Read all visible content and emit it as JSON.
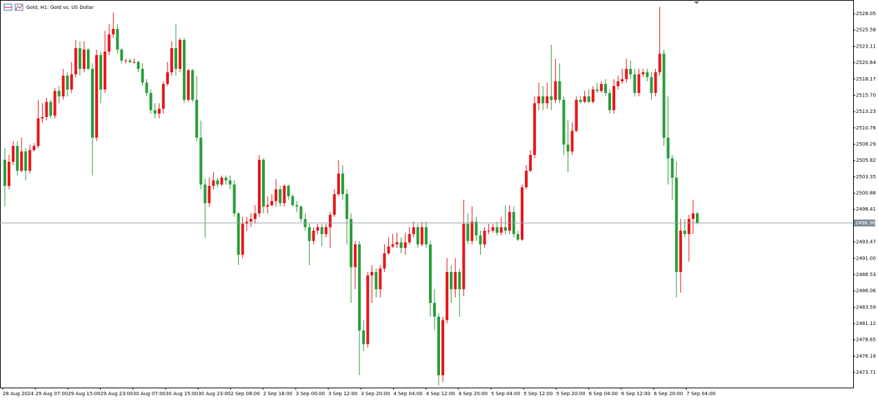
{
  "chart_data": {
    "type": "candlestick",
    "title": "Gold, H1:  Gold vs. US Dollar",
    "up_color": "#e8161a",
    "down_color": "#2a9d3a",
    "ylim": [
      2471.42,
      2530.14
    ],
    "yticks": [
      2528.05,
      2525.58,
      2523.11,
      2520.64,
      2518.17,
      {
        "value": 2515.7,
        "label": "2515.70"
      },
      2513.23,
      2510.76,
      2508.29,
      2505.82,
      2503.35,
      2500.88,
      2498.41,
      2493.47,
      {
        "value": 2491.0,
        "label": "2491.00"
      },
      2488.53,
      2486.06,
      2483.59,
      2481.12,
      2478.65,
      2476.18,
      2473.71
    ],
    "current_price": {
      "value": 2496.36,
      "label": "2496.36"
    },
    "x_labels": [
      "28 Aug 2024",
      "29 Aug 07:00",
      "29 Aug 15:00",
      "29 Aug 23:00",
      "30 Aug 07:00",
      "30 Aug 15:00",
      "30 Aug 23:00",
      "2 Sep 08:00",
      "2 Sep 16:00",
      "3 Sep 00:00",
      "3 Sep 12:00",
      "3 Sep 20:00",
      "4 Sep 04:00",
      "4 Sep 12:00",
      "4 Sep 20:00",
      "5 Sep 04:00",
      "5 Sep 12:00",
      "5 Sep 20:00",
      "6 Sep 04:00",
      "6 Sep 12:00",
      "6 Sep 20:00",
      "7 Sep 04:00"
    ],
    "ohlc": [
      [
        2505.94,
        2507.72,
        2498.85,
        2501.98
      ],
      [
        2501.98,
        2506.67,
        2501.46,
        2505.63
      ],
      [
        2505.63,
        2508.76,
        2505.11,
        2508.03
      ],
      [
        2508.03,
        2508.76,
        2503.54,
        2504.27
      ],
      [
        2504.27,
        2509.28,
        2504.06,
        2507.19
      ],
      [
        2507.19,
        2507.72,
        2502.81,
        2504.27
      ],
      [
        2504.27,
        2508.24,
        2503.86,
        2507.4
      ],
      [
        2507.4,
        2508.45,
        2507.19,
        2508.03
      ],
      [
        2508.03,
        2515.02,
        2507.72,
        2512.2
      ],
      [
        2512.2,
        2514.5,
        2511.57,
        2512.41
      ],
      [
        2512.41,
        2515.33,
        2511.89,
        2514.7
      ],
      [
        2514.7,
        2515.02,
        2512.2,
        2512.62
      ],
      [
        2512.62,
        2516.79,
        2512.2,
        2516.37
      ],
      [
        2516.37,
        2517.1,
        2514.5,
        2515.54
      ],
      [
        2515.54,
        2519.71,
        2515.02,
        2518.67
      ],
      [
        2518.67,
        2519.19,
        2515.54,
        2516.58
      ],
      [
        2516.58,
        2520.75,
        2516.06,
        2518.88
      ],
      [
        2518.88,
        2524.09,
        2518.46,
        2522.84
      ],
      [
        2522.84,
        2523.88,
        2518.67,
        2519.71
      ],
      [
        2519.71,
        2523.88,
        2519.19,
        2522.63
      ],
      [
        2522.63,
        2522.84,
        2519.5,
        2519.71
      ],
      [
        2519.71,
        2520.54,
        2503.54,
        2509.28
      ],
      [
        2509.28,
        2522.63,
        2508.76,
        2521.8
      ],
      [
        2521.8,
        2522.32,
        2514.5,
        2516.58
      ],
      [
        2516.58,
        2525.45,
        2516.06,
        2522.32
      ],
      [
        2522.32,
        2526.49,
        2521.8,
        2524.93
      ],
      [
        2524.93,
        2528.26,
        2524.4,
        2525.76
      ],
      [
        2525.76,
        2526.49,
        2522.0,
        2522.63
      ],
      [
        2522.63,
        2522.84,
        2520.54,
        2520.96
      ],
      [
        2520.96,
        2521.27,
        2520.54,
        2520.96
      ],
      [
        2520.96,
        2521.27,
        2520.54,
        2520.75
      ],
      [
        2520.75,
        2521.27,
        2520.54,
        2520.75
      ],
      [
        2520.75,
        2520.96,
        2519.19,
        2519.71
      ],
      [
        2519.71,
        2520.54,
        2517.1,
        2517.62
      ],
      [
        2517.62,
        2518.15,
        2515.54,
        2516.06
      ],
      [
        2516.06,
        2516.58,
        2512.93,
        2513.45
      ],
      [
        2513.45,
        2514.5,
        2512.2,
        2512.93
      ],
      [
        2512.93,
        2514.5,
        2512.2,
        2513.66
      ],
      [
        2513.66,
        2517.83,
        2512.93,
        2517.42
      ],
      [
        2517.42,
        2520.75,
        2517.1,
        2519.19
      ],
      [
        2519.19,
        2523.88,
        2518.67,
        2522.84
      ],
      [
        2522.84,
        2526.49,
        2518.67,
        2519.71
      ],
      [
        2519.71,
        2524.4,
        2519.19,
        2524.09
      ],
      [
        2524.09,
        2524.4,
        2514.5,
        2515.02
      ],
      [
        2515.02,
        2519.71,
        2514.7,
        2519.5
      ],
      [
        2519.5,
        2519.71,
        2514.7,
        2515.02
      ],
      [
        2515.02,
        2518.67,
        2508.76,
        2509.28
      ],
      [
        2509.28,
        2511.89,
        2501.46,
        2502.19
      ],
      [
        2502.19,
        2503.02,
        2494.16,
        2499.37
      ],
      [
        2499.37,
        2503.23,
        2498.85,
        2501.98
      ],
      [
        2501.98,
        2504.06,
        2501.46,
        2502.81
      ],
      [
        2502.81,
        2503.23,
        2501.77,
        2502.19
      ],
      [
        2502.19,
        2503.54,
        2501.98,
        2503.23
      ],
      [
        2503.23,
        2503.54,
        2502.19,
        2502.81
      ],
      [
        2502.81,
        2503.54,
        2501.46,
        2502.19
      ],
      [
        2502.19,
        2502.81,
        2497.29,
        2497.81
      ],
      [
        2497.81,
        2498.02,
        2489.98,
        2491.55
      ],
      [
        2491.55,
        2497.29,
        2491.03,
        2496.24
      ],
      [
        2496.24,
        2497.29,
        2495.2,
        2496.56
      ],
      [
        2496.56,
        2497.81,
        2495.72,
        2496.97
      ],
      [
        2496.97,
        2499.06,
        2496.24,
        2497.81
      ],
      [
        2497.81,
        2506.67,
        2497.29,
        2505.94
      ],
      [
        2505.94,
        2506.15,
        2497.81,
        2498.85
      ],
      [
        2498.85,
        2500.41,
        2497.81,
        2499.06
      ],
      [
        2499.06,
        2500.73,
        2498.85,
        2499.68
      ],
      [
        2499.68,
        2503.02,
        2498.85,
        2501.46
      ],
      [
        2501.46,
        2501.98,
        2498.85,
        2499.37
      ],
      [
        2499.37,
        2502.19,
        2498.85,
        2501.98
      ],
      [
        2501.98,
        2502.19,
        2499.89,
        2500.41
      ],
      [
        2500.41,
        2500.73,
        2498.85,
        2499.06
      ],
      [
        2499.06,
        2499.68,
        2498.02,
        2498.85
      ],
      [
        2498.85,
        2499.06,
        2496.56,
        2496.97
      ],
      [
        2496.97,
        2497.81,
        2495.2,
        2495.72
      ],
      [
        2495.72,
        2496.24,
        2489.98,
        2493.64
      ],
      [
        2493.64,
        2495.72,
        2493.11,
        2495.2
      ],
      [
        2495.2,
        2496.24,
        2494.68,
        2495.72
      ],
      [
        2495.72,
        2496.24,
        2492.8,
        2494.68
      ],
      [
        2494.68,
        2496.24,
        2494.16,
        2495.72
      ],
      [
        2495.72,
        2498.02,
        2492.59,
        2497.6
      ],
      [
        2497.6,
        2501.46,
        2497.29,
        2500.73
      ],
      [
        2500.73,
        2505.94,
        2500.41,
        2503.86
      ],
      [
        2503.86,
        2505.11,
        2499.89,
        2500.73
      ],
      [
        2500.73,
        2501.46,
        2493.11,
        2496.97
      ],
      [
        2496.97,
        2497.81,
        2484.25,
        2489.67
      ],
      [
        2489.67,
        2493.64,
        2486.33,
        2493.11
      ],
      [
        2493.11,
        2493.64,
        2473.3,
        2480.08
      ],
      [
        2480.08,
        2481.64,
        2476.95,
        2478.01
      ],
      [
        2478.01,
        2488.94,
        2477.47,
        2488.42
      ],
      [
        2488.42,
        2489.98,
        2484.25,
        2488.94
      ],
      [
        2488.94,
        2489.46,
        2485.08,
        2486.33
      ],
      [
        2486.33,
        2489.98,
        2485.08,
        2489.46
      ],
      [
        2489.46,
        2493.11,
        2488.94,
        2491.76
      ],
      [
        2491.76,
        2494.16,
        2491.55,
        2492.8
      ],
      [
        2492.8,
        2494.68,
        2492.59,
        2493.11
      ],
      [
        2493.11,
        2494.89,
        2492.59,
        2493.43
      ],
      [
        2493.43,
        2494.16,
        2491.76,
        2492.59
      ],
      [
        2492.59,
        2494.89,
        2491.55,
        2493.43
      ],
      [
        2493.43,
        2495.72,
        2493.11,
        2494.68
      ],
      [
        2494.68,
        2496.56,
        2494.16,
        2495.72
      ],
      [
        2495.72,
        2496.24,
        2492.59,
        2493.11
      ],
      [
        2493.11,
        2496.56,
        2492.8,
        2495.72
      ],
      [
        2495.72,
        2496.56,
        2492.59,
        2493.11
      ],
      [
        2493.11,
        2493.64,
        2482.16,
        2484.25
      ],
      [
        2484.25,
        2486.33,
        2480.08,
        2482.16
      ],
      [
        2482.16,
        2482.68,
        2471.73,
        2473.3
      ],
      [
        2473.3,
        2482.16,
        2472.26,
        2481.64
      ],
      [
        2481.64,
        2491.03,
        2481.12,
        2488.94
      ],
      [
        2488.94,
        2489.98,
        2484.25,
        2486.33
      ],
      [
        2486.33,
        2491.03,
        2485.08,
        2488.94
      ],
      [
        2488.94,
        2489.46,
        2482.16,
        2486.33
      ],
      [
        2486.33,
        2499.89,
        2485.29,
        2496.24
      ],
      [
        2496.24,
        2497.81,
        2493.11,
        2493.64
      ],
      [
        2493.64,
        2498.85,
        2493.11,
        2496.56
      ],
      [
        2496.56,
        2497.29,
        2493.64,
        2494.47
      ],
      [
        2494.47,
        2495.2,
        2491.55,
        2493.11
      ],
      [
        2493.11,
        2495.72,
        2492.59,
        2495.2
      ],
      [
        2495.2,
        2496.24,
        2494.68,
        2495.2
      ],
      [
        2495.2,
        2496.24,
        2494.89,
        2495.72
      ],
      [
        2495.72,
        2496.56,
        2494.47,
        2494.89
      ],
      [
        2494.89,
        2497.29,
        2494.47,
        2495.72
      ],
      [
        2495.72,
        2499.06,
        2494.68,
        2495.2
      ],
      [
        2495.2,
        2499.06,
        2494.68,
        2498.02
      ],
      [
        2498.02,
        2498.85,
        2494.16,
        2494.68
      ],
      [
        2494.68,
        2495.2,
        2493.64,
        2493.84
      ],
      [
        2493.84,
        2502.19,
        2493.64,
        2501.77
      ],
      [
        2501.77,
        2505.11,
        2501.46,
        2504.27
      ],
      [
        2504.27,
        2507.4,
        2504.06,
        2506.67
      ],
      [
        2506.67,
        2515.54,
        2506.15,
        2514.5
      ],
      [
        2514.5,
        2517.62,
        2513.45,
        2515.54
      ],
      [
        2515.54,
        2517.1,
        2513.45,
        2514.5
      ],
      [
        2514.5,
        2517.62,
        2513.66,
        2515.54
      ],
      [
        2515.54,
        2523.36,
        2513.45,
        2515.02
      ],
      [
        2515.02,
        2521.27,
        2514.5,
        2517.83
      ],
      [
        2517.83,
        2520.54,
        2514.5,
        2515.02
      ],
      [
        2515.02,
        2515.54,
        2506.67,
        2508.24
      ],
      [
        2508.24,
        2511.89,
        2504.06,
        2507.19
      ],
      [
        2507.19,
        2511.57,
        2506.67,
        2510.32
      ],
      [
        2510.32,
        2515.54,
        2510.11,
        2515.02
      ],
      [
        2515.02,
        2515.54,
        2514.5,
        2514.7
      ],
      [
        2514.7,
        2516.37,
        2514.5,
        2515.54
      ],
      [
        2515.54,
        2516.58,
        2514.5,
        2514.7
      ],
      [
        2514.7,
        2517.1,
        2514.5,
        2516.58
      ],
      [
        2516.58,
        2517.62,
        2516.06,
        2516.37
      ],
      [
        2516.37,
        2517.83,
        2516.06,
        2517.42
      ],
      [
        2517.42,
        2518.15,
        2515.54,
        2516.06
      ],
      [
        2516.06,
        2516.58,
        2512.93,
        2513.45
      ],
      [
        2513.45,
        2518.15,
        2512.93,
        2517.1
      ],
      [
        2517.1,
        2518.67,
        2516.58,
        2517.83
      ],
      [
        2517.83,
        2519.71,
        2517.42,
        2518.15
      ],
      [
        2518.15,
        2521.27,
        2517.62,
        2519.71
      ],
      [
        2519.71,
        2520.96,
        2518.15,
        2518.88
      ],
      [
        2518.88,
        2519.71,
        2515.54,
        2516.06
      ],
      [
        2516.06,
        2519.71,
        2515.54,
        2518.88
      ],
      [
        2518.88,
        2519.71,
        2518.46,
        2519.19
      ],
      [
        2519.19,
        2519.71,
        2517.83,
        2518.46
      ],
      [
        2518.46,
        2519.19,
        2515.02,
        2516.06
      ],
      [
        2516.06,
        2519.71,
        2515.54,
        2519.19
      ],
      [
        2519.19,
        2529.1,
        2518.67,
        2522.0
      ],
      [
        2522.0,
        2522.63,
        2508.03,
        2509.28
      ],
      [
        2509.28,
        2515.54,
        2502.19,
        2506.15
      ],
      [
        2506.15,
        2506.67,
        2499.89,
        2503.23
      ],
      [
        2503.23,
        2505.63,
        2485.08,
        2488.94
      ],
      [
        2488.94,
        2496.97,
        2485.81,
        2495.2
      ],
      [
        2495.2,
        2496.97,
        2494.16,
        2494.68
      ],
      [
        2494.68,
        2497.6,
        2490.51,
        2496.97
      ],
      [
        2496.97,
        2499.89,
        2494.68,
        2497.81
      ],
      [
        2497.81,
        2498.02,
        2496.14,
        2496.36
      ]
    ]
  }
}
